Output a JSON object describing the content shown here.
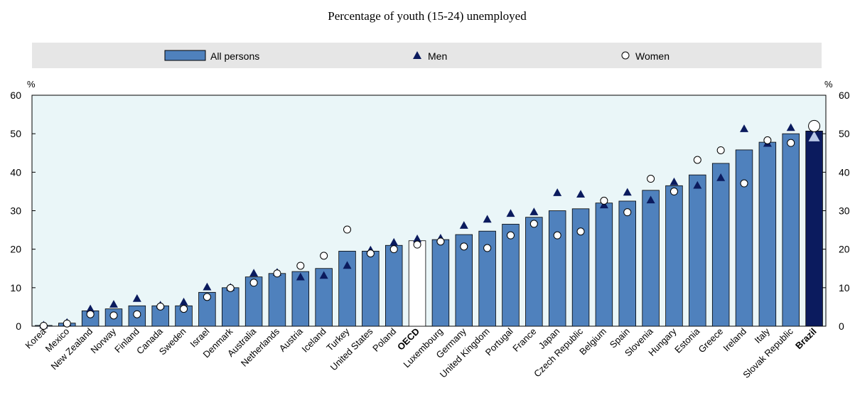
{
  "chart_data": {
    "type": "bar",
    "title": "Percentage of youth (15-24) unemployed",
    "unit_left": "%",
    "unit_right": "%",
    "ylim": [
      0,
      60
    ],
    "yticks": [
      0,
      10,
      20,
      30,
      40,
      50,
      60
    ],
    "grid": false,
    "legend_position": "top",
    "legend": {
      "all": "All persons",
      "men": "Men",
      "women": "Women"
    },
    "colors": {
      "bar": "#4f81bd",
      "bar_edge": "#000000",
      "highlight_bar": "#0b1b5e",
      "oecd_bar": "#ffffff",
      "men_marker": "#0b1b5e",
      "women_marker": "#ffffff",
      "plot_bg": "#eaf6f8",
      "legend_bg": "#e6e6e6",
      "highlight_label": "#0b1b5e"
    },
    "categories": [
      "Korea",
      "Mexico",
      "New Zealand",
      "Norway",
      "Finland",
      "Canada",
      "Sweden",
      "Israel",
      "Denmark",
      "Australia",
      "Netherlands",
      "Austria",
      "Iceland",
      "Turkey",
      "United States",
      "Poland",
      "OECD",
      "Luxembourg",
      "Germany",
      "United Kingdom",
      "Portugal",
      "France",
      "Japan",
      "Czech Republic",
      "Belgium",
      "Spain",
      "Slovenia",
      "Hungary",
      "Estonia",
      "Greece",
      "Ireland",
      "Italy",
      "Slovak Republic",
      "Brazil"
    ],
    "bold_categories": [
      "OECD",
      "Brazil"
    ],
    "series": [
      {
        "name": "All persons",
        "values": [
          0.2,
          0.8,
          4.0,
          4.5,
          5.3,
          5.3,
          5.3,
          8.8,
          10.0,
          12.8,
          13.7,
          14.2,
          15.0,
          19.5,
          19.5,
          21.0,
          22.2,
          22.5,
          23.8,
          24.7,
          26.5,
          28.3,
          30.0,
          30.5,
          32.0,
          32.5,
          35.3,
          36.5,
          39.3,
          42.3,
          45.8,
          47.8,
          50.0,
          50.7
        ]
      },
      {
        "name": "Men",
        "values": [
          0.3,
          1.0,
          4.5,
          5.7,
          7.2,
          5.5,
          6.3,
          10.2,
          10.1,
          13.8,
          14.0,
          12.8,
          13.2,
          15.8,
          19.8,
          21.8,
          22.7,
          22.9,
          26.2,
          27.8,
          29.3,
          29.7,
          34.7,
          34.3,
          31.5,
          34.8,
          32.8,
          37.5,
          36.6,
          38.6,
          51.3,
          47.5,
          51.6,
          49.2
        ]
      },
      {
        "name": "Women",
        "values": [
          0.1,
          0.7,
          3.1,
          2.8,
          3.1,
          5.1,
          4.5,
          7.6,
          9.9,
          11.3,
          13.7,
          15.7,
          18.3,
          25.1,
          18.9,
          20.0,
          21.2,
          22.0,
          20.7,
          20.3,
          23.6,
          26.6,
          23.6,
          24.6,
          32.6,
          29.6,
          38.3,
          35.0,
          43.2,
          45.7,
          37.1,
          48.3,
          47.6,
          52.0
        ]
      }
    ]
  }
}
